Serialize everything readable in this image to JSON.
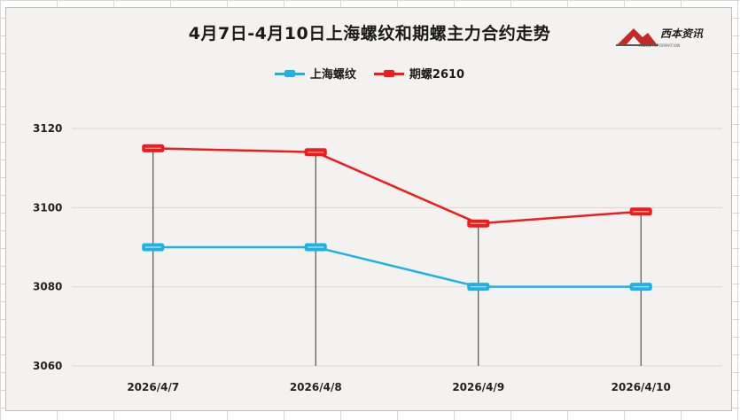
{
  "chart_data": {
    "type": "line",
    "title": "4月7日-4月10日上海螺纹和期螺主力合约走势",
    "categories": [
      "2026/4/7",
      "2026/4/8",
      "2026/4/9",
      "2026/4/10"
    ],
    "series": [
      {
        "name": "上海螺纹",
        "values": [
          3090,
          3090,
          3080,
          3080
        ],
        "color": "#1fb0e6"
      },
      {
        "name": "期螺2610",
        "values": [
          3115,
          3114,
          3096,
          3099
        ],
        "color": "#ee1c1c"
      }
    ],
    "ylim": [
      3060,
      3120
    ],
    "yticks": [
      3060,
      3080,
      3100,
      3120
    ],
    "high_low_lines": true,
    "legend_position": "top",
    "grid": true
  },
  "logo": {
    "text": "西本资讯",
    "subtext": "XIBEN INFORMATION"
  },
  "colors": {
    "plot_background": "#f3f2f0",
    "gridline": "#d6d6d6",
    "hilo_line": "#333333"
  }
}
